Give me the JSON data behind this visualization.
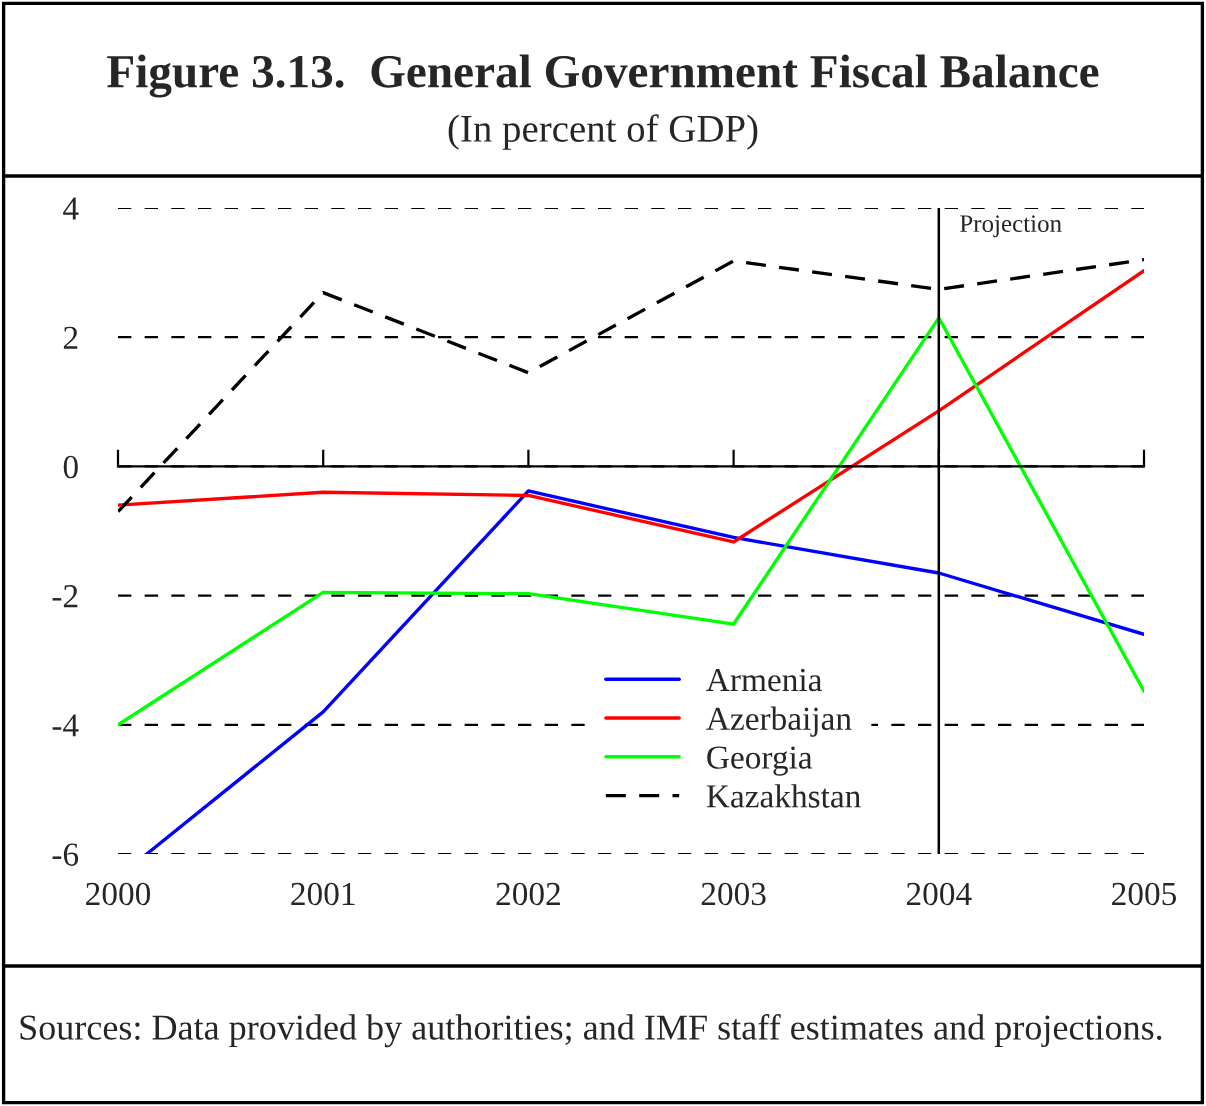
{
  "chart_data": {
    "type": "line",
    "title": "Figure 3.13.  General Government Fiscal Balance",
    "subtitle": "(In percent of GDP)",
    "x": [
      2000,
      2001,
      2002,
      2003,
      2004,
      2005
    ],
    "series": [
      {
        "name": "Armenia",
        "color": "#0000ff",
        "x": [
          2000.14,
          2001,
          2002,
          2003,
          2004,
          2005
        ],
        "values": [
          -6,
          -3.8,
          -0.38,
          -1.1,
          -1.65,
          -2.6
        ]
      },
      {
        "name": "Azerbaijan",
        "color": "#ff0000",
        "values": [
          -0.6,
          -0.4,
          -0.45,
          -1.17,
          0.86,
          3.03
        ]
      },
      {
        "name": "Georgia",
        "color": "#00ff00",
        "values": [
          -4,
          -1.95,
          -1.97,
          -2.44,
          2.3,
          -3.48
        ]
      },
      {
        "name": "Kazakhstan",
        "color": "#000000",
        "line_style": "dashed",
        "values": [
          -0.7,
          2.69,
          1.45,
          3.18,
          2.74,
          3.2
        ]
      }
    ],
    "xlim": [
      2000,
      2005
    ],
    "xticks": [
      2000,
      2001,
      2002,
      2003,
      2004,
      2005
    ],
    "ylim": [
      -6,
      4
    ],
    "yticks": [
      -6,
      -4,
      -2,
      0,
      2,
      4
    ],
    "ref_lines": [
      {
        "axis": "x",
        "value": 2004,
        "label": "Projection",
        "color": "#000000"
      }
    ],
    "grid": "y",
    "legend": "bottom",
    "line_style": "solid",
    "annotations": [
      "Sources: Data provided by authorities; and IMF staff estimates and projections."
    ]
  }
}
